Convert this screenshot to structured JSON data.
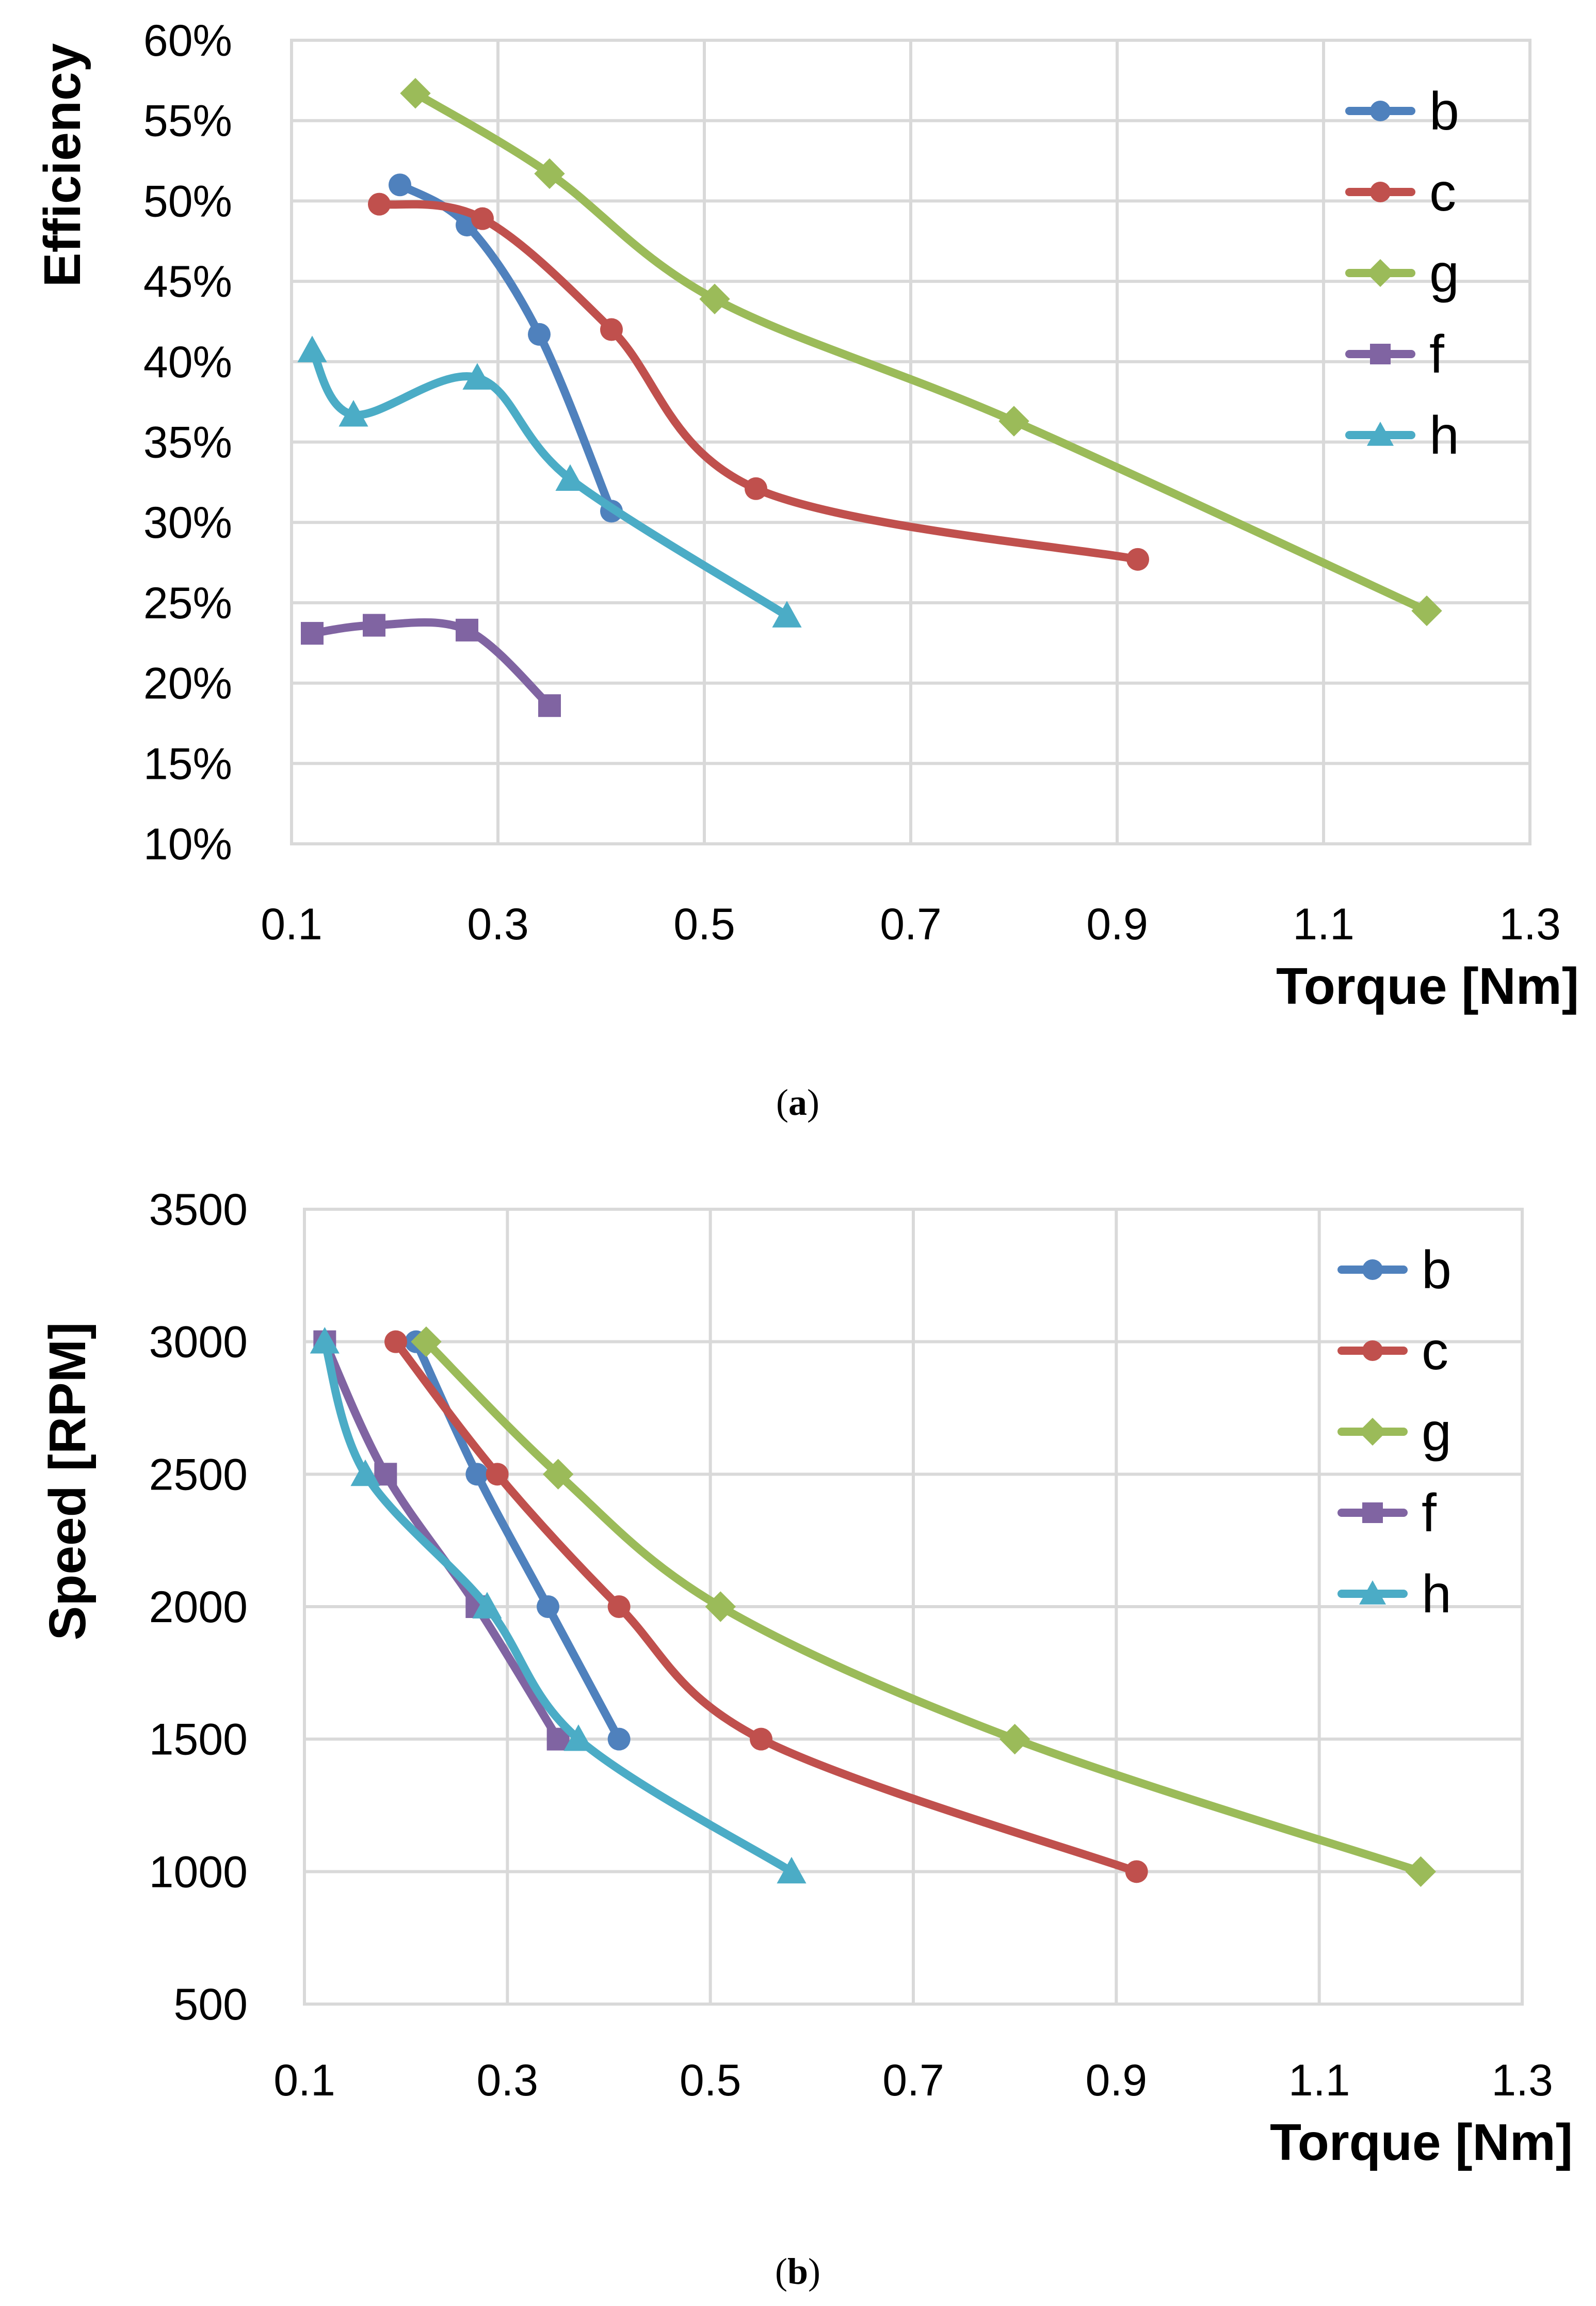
{
  "chart_data": [
    {
      "type": "line",
      "caption_label": "a",
      "xlabel": "Torque [Nm]",
      "ylabel": "Efficiency",
      "xlim": [
        0.1,
        1.3
      ],
      "ylim": [
        10,
        60
      ],
      "x_ticks": [
        0.1,
        0.3,
        0.5,
        0.7,
        0.9,
        1.1,
        1.3
      ],
      "x_tick_labels": [
        "0.1",
        "0.3",
        "0.5",
        "0.7",
        "0.9",
        "1.1",
        "1.3"
      ],
      "y_ticks": [
        10,
        15,
        20,
        25,
        30,
        35,
        40,
        45,
        50,
        55,
        60
      ],
      "y_tick_labels": [
        "10%",
        "15%",
        "20%",
        "25%",
        "30%",
        "35%",
        "40%",
        "45%",
        "50%",
        "55%",
        "60%"
      ],
      "grid": true,
      "legend_position": "top-right",
      "series": [
        {
          "name": "b",
          "color": "#4f81bd",
          "marker": "circle",
          "x": [
            0.205,
            0.27,
            0.34,
            0.41
          ],
          "y": [
            51.0,
            48.5,
            41.7,
            30.7
          ]
        },
        {
          "name": "c",
          "color": "#c0504d",
          "marker": "circle",
          "x": [
            0.185,
            0.285,
            0.41,
            0.55,
            0.92
          ],
          "y": [
            49.8,
            48.9,
            42.0,
            32.1,
            27.7
          ]
        },
        {
          "name": "g",
          "color": "#9bbb59",
          "marker": "diamond",
          "x": [
            0.22,
            0.35,
            0.51,
            0.8,
            1.2
          ],
          "y": [
            56.7,
            51.7,
            43.9,
            36.3,
            24.5
          ]
        },
        {
          "name": "f",
          "color": "#8064a2",
          "marker": "square",
          "x": [
            0.12,
            0.18,
            0.27,
            0.35
          ],
          "y": [
            23.1,
            23.6,
            23.3,
            18.6
          ]
        },
        {
          "name": "h",
          "color": "#4bacc6",
          "marker": "triangle",
          "x": [
            0.12,
            0.16,
            0.28,
            0.37,
            0.58
          ],
          "y": [
            40.7,
            36.7,
            39.0,
            32.7,
            24.2
          ]
        }
      ]
    },
    {
      "type": "line",
      "caption_label": "b",
      "xlabel": "Torque [Nm]",
      "ylabel": "Speed [RPM]",
      "xlim": [
        0.1,
        1.3
      ],
      "ylim": [
        500,
        3500
      ],
      "x_ticks": [
        0.1,
        0.3,
        0.5,
        0.7,
        0.9,
        1.1,
        1.3
      ],
      "x_tick_labels": [
        "0.1",
        "0.3",
        "0.5",
        "0.7",
        "0.9",
        "1.1",
        "1.3"
      ],
      "y_ticks": [
        500,
        1000,
        1500,
        2000,
        2500,
        3000,
        3500
      ],
      "y_tick_labels": [
        "500",
        "1000",
        "1500",
        "2000",
        "2500",
        "3000",
        "3500"
      ],
      "grid": true,
      "legend_position": "top-right",
      "series": [
        {
          "name": "b",
          "color": "#4f81bd",
          "marker": "circle",
          "x": [
            0.21,
            0.27,
            0.34,
            0.41
          ],
          "y": [
            3000,
            2500,
            2000,
            1500
          ]
        },
        {
          "name": "c",
          "color": "#c0504d",
          "marker": "circle",
          "x": [
            0.19,
            0.29,
            0.41,
            0.55,
            0.92
          ],
          "y": [
            3000,
            2500,
            2000,
            1500,
            1000
          ]
        },
        {
          "name": "g",
          "color": "#9bbb59",
          "marker": "diamond",
          "x": [
            0.22,
            0.35,
            0.51,
            0.8,
            1.2
          ],
          "y": [
            3000,
            2500,
            2000,
            1500,
            1000
          ]
        },
        {
          "name": "f",
          "color": "#8064a2",
          "marker": "square",
          "x": [
            0.12,
            0.18,
            0.27,
            0.35
          ],
          "y": [
            3000,
            2500,
            2000,
            1500
          ]
        },
        {
          "name": "h",
          "color": "#4bacc6",
          "marker": "triangle",
          "x": [
            0.12,
            0.16,
            0.28,
            0.37,
            0.58
          ],
          "y": [
            3000,
            2500,
            2000,
            1500,
            1000
          ]
        }
      ]
    }
  ]
}
